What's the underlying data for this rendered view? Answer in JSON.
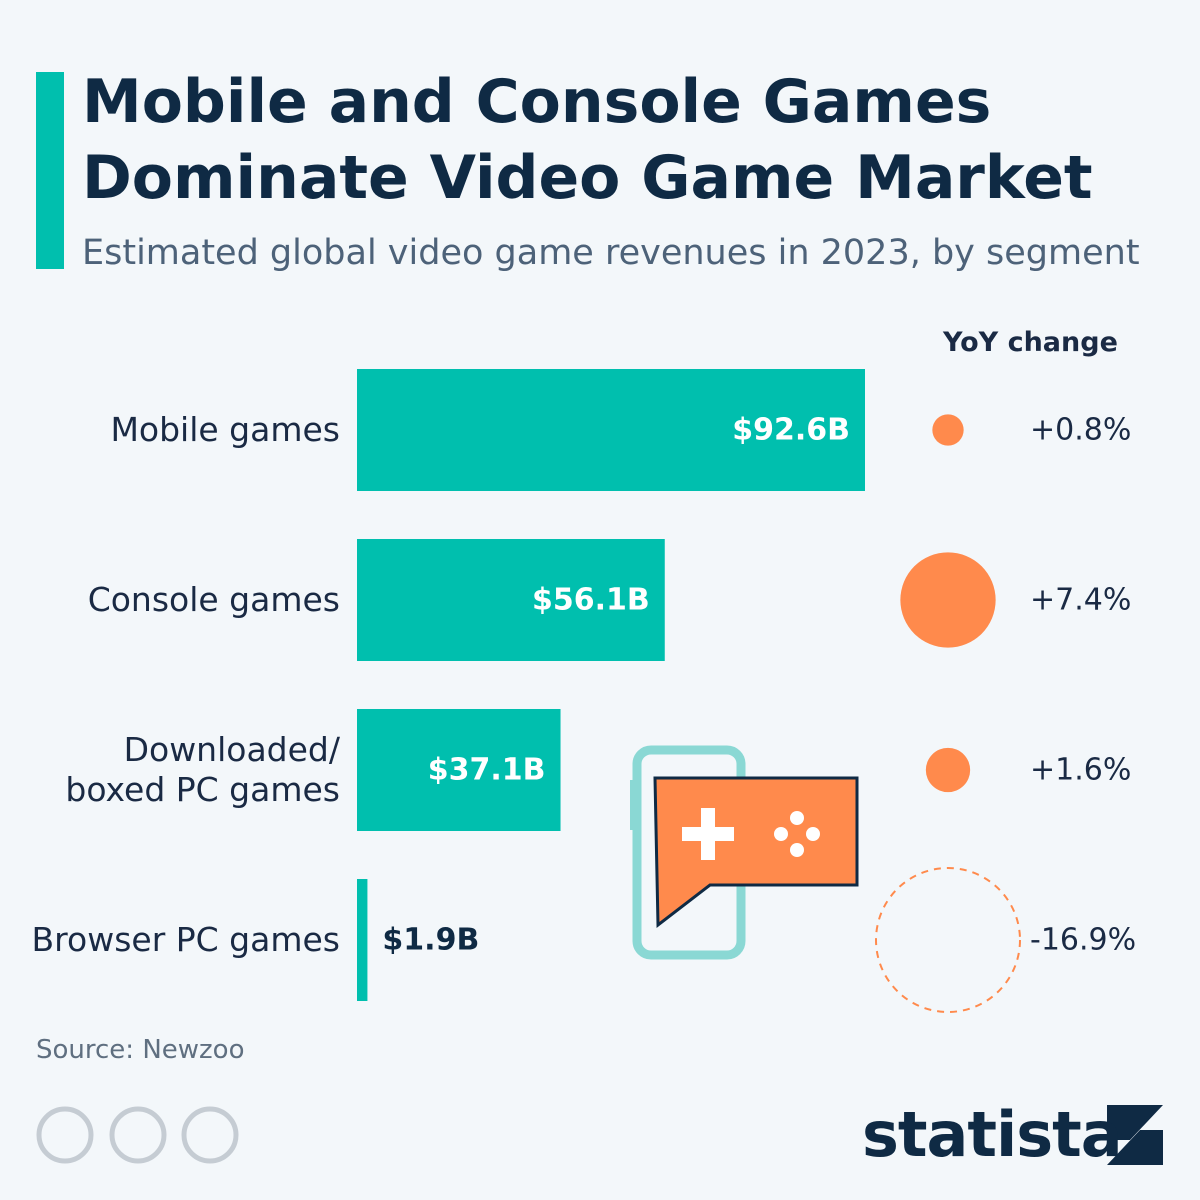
{
  "chart_data": {
    "type": "bar",
    "title": "Mobile and Console Games Dominate Video Game Market",
    "subtitle": "Estimated global video game revenues in 2023, by segment",
    "categories": [
      "Mobile games",
      "Console games",
      "Downloaded/\nboxed PC games",
      "Browser PC games"
    ],
    "values": [
      92.6,
      56.1,
      37.1,
      1.9
    ],
    "value_labels": [
      "$92.6B",
      "$56.1B",
      "$37.1B",
      "$1.9B"
    ],
    "color": "#00bfae",
    "yoy": {
      "title": "YoY change",
      "color": "#ff8a4c",
      "values": [
        0.8,
        7.4,
        1.6,
        -16.9
      ],
      "value_labels": [
        "+0.8%",
        "+7.4%",
        "+1.6%",
        "-16.9%"
      ]
    },
    "source": "Source: Newzoo",
    "brand": "statista"
  }
}
